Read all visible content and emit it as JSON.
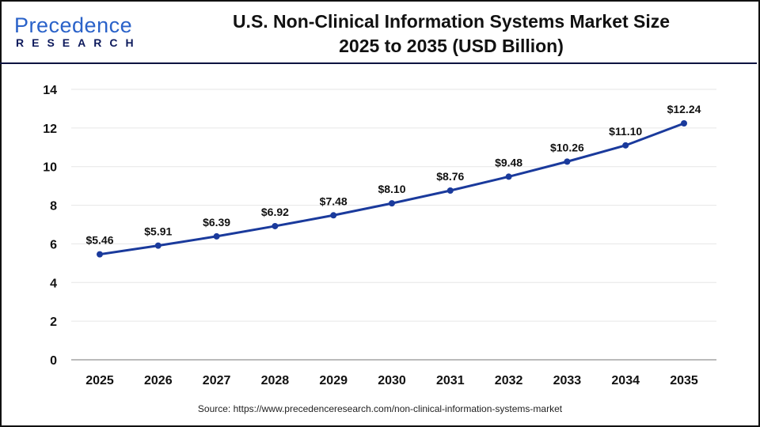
{
  "logo": {
    "line1": "Precedence",
    "line2": "RESEARCH"
  },
  "title_line1": "U.S. Non-Clinical Information Systems Market Size",
  "title_line2": "2025 to 2035 (USD Billion)",
  "source": "Source: https://www.precedenceresearch.com/non-clinical-information-systems-market",
  "chart_data": {
    "type": "line",
    "title": "U.S. Non-Clinical Information Systems Market Size 2025 to 2035 (USD Billion)",
    "categories": [
      "2025",
      "2026",
      "2027",
      "2028",
      "2029",
      "2030",
      "2031",
      "2032",
      "2033",
      "2034",
      "2035"
    ],
    "values": [
      5.46,
      5.91,
      6.39,
      6.92,
      7.48,
      8.1,
      8.76,
      9.48,
      10.26,
      11.1,
      12.24
    ],
    "data_labels": [
      "$5.46",
      "$5.91",
      "$6.39",
      "$6.92",
      "$7.48",
      "$8.10",
      "$8.76",
      "$9.48",
      "$10.26",
      "$11.10",
      "$12.24"
    ],
    "yticks": [
      "0",
      "2",
      "4",
      "6",
      "8",
      "10",
      "12",
      "14"
    ],
    "ylim": [
      0,
      14
    ],
    "grid": true,
    "line_color": "#1a3a9c"
  }
}
